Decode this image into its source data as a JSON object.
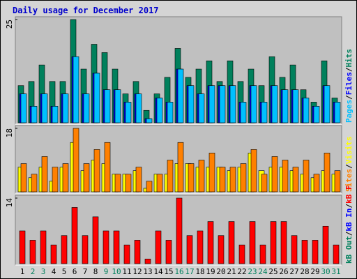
{
  "title": "Daily usage for December 2017",
  "legend_separator": "/",
  "chart_data": [
    {
      "type": "bar",
      "ylim": [
        0,
        25
      ],
      "yticks": [
        25
      ],
      "series": [
        {
          "name": "Hits",
          "color": "#00805c",
          "values": [
            9,
            10,
            14,
            10,
            10,
            25,
            13,
            19,
            17,
            13,
            7,
            10,
            3,
            7,
            11,
            18,
            11,
            13,
            15,
            10,
            15,
            10,
            13,
            9,
            16,
            11,
            14,
            8,
            5,
            15,
            6
          ]
        },
        {
          "name": "Files",
          "color": "#0000ff",
          "values": [
            7,
            4,
            7,
            4,
            7,
            16,
            7,
            12,
            8,
            8,
            5,
            7,
            1,
            6,
            5,
            13,
            9,
            7,
            9,
            9,
            9,
            5,
            9,
            5,
            9,
            8,
            8,
            6,
            4,
            9,
            5
          ]
        },
        {
          "name": "Pages",
          "color": "#00c0ff",
          "values": [
            7,
            4,
            7,
            4,
            7,
            16,
            7,
            12,
            8,
            8,
            5,
            7,
            1,
            6,
            5,
            13,
            9,
            7,
            9,
            9,
            9,
            5,
            9,
            5,
            9,
            8,
            8,
            6,
            4,
            9,
            5
          ]
        }
      ]
    },
    {
      "type": "bar",
      "ylim": [
        0,
        18
      ],
      "yticks": [
        18
      ],
      "series": [
        {
          "name": "Visits",
          "color": "#ffff00",
          "values": [
            7,
            4,
            7,
            3,
            7,
            14,
            6,
            9,
            8,
            5,
            5,
            6,
            1,
            5,
            5,
            8,
            8,
            7,
            7,
            7,
            6,
            7,
            11,
            6,
            7,
            7,
            6,
            5,
            4,
            6,
            5
          ]
        },
        {
          "name": "Sites",
          "color": "#ff8000",
          "values": [
            8,
            5,
            10,
            7,
            8,
            18,
            8,
            12,
            14,
            5,
            5,
            7,
            3,
            5,
            9,
            14,
            8,
            9,
            11,
            7,
            7,
            8,
            12,
            5,
            10,
            9,
            7,
            9,
            5,
            11,
            6
          ]
        }
      ]
    },
    {
      "type": "bar",
      "ylim": [
        0,
        14
      ],
      "yticks": [
        14
      ],
      "categories": [
        "1",
        "2",
        "3",
        "4",
        "5",
        "6",
        "7",
        "8",
        "9",
        "10",
        "11",
        "12",
        "13",
        "14",
        "15",
        "16",
        "17",
        "18",
        "19",
        "20",
        "21",
        "22",
        "23",
        "24",
        "25",
        "26",
        "27",
        "28",
        "29",
        "30",
        "31"
      ],
      "category_colors": [
        "#000000",
        "#00805c",
        "#00805c",
        "#000000",
        "#000000",
        "#000000",
        "#000000",
        "#000000",
        "#00805c",
        "#00805c",
        "#000000",
        "#000000",
        "#000000",
        "#000000",
        "#000000",
        "#00805c",
        "#00805c",
        "#000000",
        "#000000",
        "#000000",
        "#000000",
        "#000000",
        "#00805c",
        "#00805c",
        "#000000",
        "#000000",
        "#000000",
        "#000000",
        "#000000",
        "#00805c",
        "#00805c"
      ],
      "series": [
        {
          "name": "kB F",
          "color": "#ff0000",
          "values": [
            7,
            5,
            7,
            4,
            6,
            12,
            6,
            10,
            7,
            7,
            4,
            5,
            1,
            7,
            5,
            14,
            6,
            7,
            9,
            6,
            9,
            4,
            9,
            4,
            9,
            9,
            6,
            5,
            5,
            8,
            4
          ]
        },
        {
          "name": "kB In",
          "color": "#0000ff",
          "values": [
            0,
            0,
            0,
            0,
            0,
            0,
            0,
            0,
            0,
            0,
            0,
            0,
            0,
            0,
            0,
            0,
            0,
            0,
            0,
            0,
            0,
            0,
            0,
            0,
            0,
            0,
            0,
            0,
            0,
            0,
            0
          ]
        },
        {
          "name": "kB Out",
          "color": "#00805c",
          "values": [
            0,
            0,
            0,
            0,
            0,
            0,
            0,
            0,
            0,
            0,
            0,
            0,
            0,
            0,
            0,
            0,
            0,
            0,
            0,
            0,
            0,
            0,
            0,
            0,
            0,
            0,
            0,
            0,
            0,
            0,
            0
          ]
        }
      ]
    }
  ]
}
